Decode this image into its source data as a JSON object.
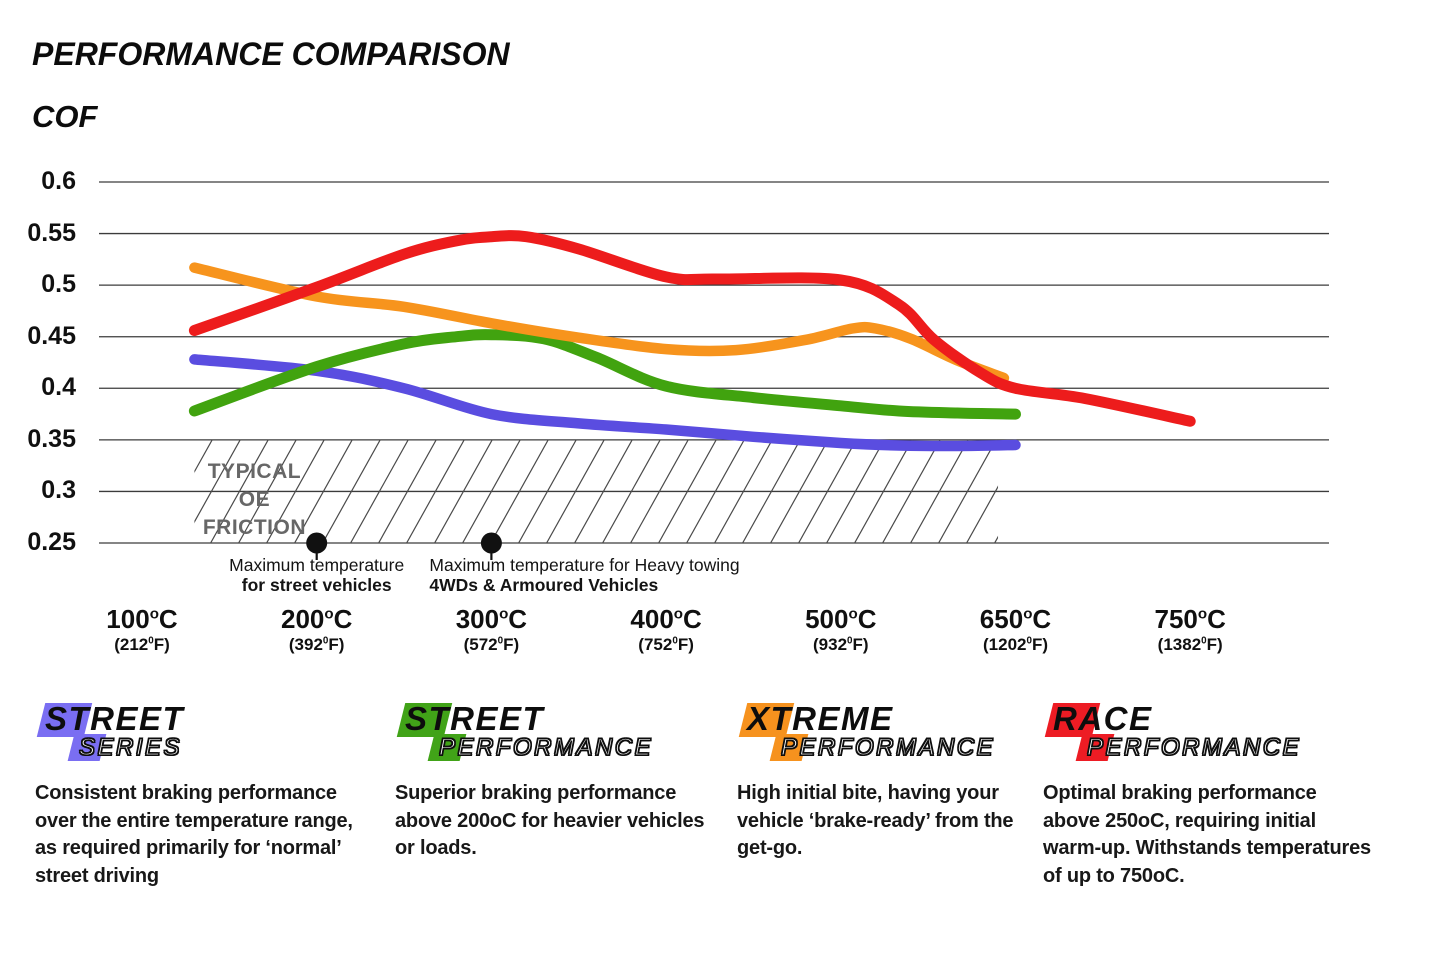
{
  "header": {
    "title": "PERFORMANCE COMPARISON",
    "cof_label": "COF"
  },
  "chart_data": {
    "type": "line",
    "title": "PERFORMANCE COMPARISON",
    "ylabel": "COF",
    "ylim": [
      0.25,
      0.6
    ],
    "grid": "horizontal-only",
    "y_ticks": [
      0.6,
      0.55,
      0.5,
      0.45,
      0.4,
      0.35,
      0.3,
      0.25
    ],
    "x_axis": {
      "unit_c_sup": "o",
      "unit_c": "C",
      "unit_f_sup": "0",
      "unit_f": "F",
      "categories": [
        {
          "temp": 100,
          "c": "100",
          "f": "212"
        },
        {
          "temp": 200,
          "c": "200",
          "f": "392"
        },
        {
          "temp": 300,
          "c": "300",
          "f": "572"
        },
        {
          "temp": 400,
          "c": "400",
          "f": "752"
        },
        {
          "temp": 500,
          "c": "500",
          "f": "932"
        },
        {
          "temp": 650,
          "c": "650",
          "f": "1202"
        },
        {
          "temp": 750,
          "c": "750",
          "f": "1382"
        }
      ]
    },
    "series": [
      {
        "name": "Street Series",
        "color": "#5a4de0",
        "width": 10.5,
        "points": [
          [
            130,
            0.428
          ],
          [
            200,
            0.417
          ],
          [
            250,
            0.4
          ],
          [
            300,
            0.375
          ],
          [
            350,
            0.366
          ],
          [
            400,
            0.36
          ],
          [
            450,
            0.353
          ],
          [
            500,
            0.347
          ],
          [
            550,
            0.3445
          ],
          [
            600,
            0.344
          ],
          [
            650,
            0.345
          ]
        ]
      },
      {
        "name": "Street Performance",
        "color": "#41a30f",
        "width": 11,
        "points": [
          [
            130,
            0.378
          ],
          [
            200,
            0.421
          ],
          [
            250,
            0.443
          ],
          [
            280,
            0.45
          ],
          [
            300,
            0.452
          ],
          [
            330,
            0.448
          ],
          [
            360,
            0.43
          ],
          [
            400,
            0.402
          ],
          [
            450,
            0.391
          ],
          [
            500,
            0.383
          ],
          [
            550,
            0.378
          ],
          [
            600,
            0.376
          ],
          [
            650,
            0.375
          ]
        ]
      },
      {
        "name": "Xtreme Performance",
        "color": "#f7941d",
        "width": 10.5,
        "points": [
          [
            130,
            0.517
          ],
          [
            200,
            0.489
          ],
          [
            250,
            0.479
          ],
          [
            300,
            0.463
          ],
          [
            350,
            0.449
          ],
          [
            400,
            0.438
          ],
          [
            440,
            0.437
          ],
          [
            480,
            0.447
          ],
          [
            510,
            0.458
          ],
          [
            530,
            0.458
          ],
          [
            560,
            0.448
          ],
          [
            600,
            0.427
          ],
          [
            640,
            0.41
          ]
        ]
      },
      {
        "name": "Race Performance",
        "color": "#ed1c1c",
        "width": 11,
        "points": [
          [
            130,
            0.456
          ],
          [
            200,
            0.498
          ],
          [
            250,
            0.53
          ],
          [
            280,
            0.543
          ],
          [
            300,
            0.547
          ],
          [
            320,
            0.547
          ],
          [
            350,
            0.535
          ],
          [
            400,
            0.508
          ],
          [
            430,
            0.506
          ],
          [
            500,
            0.505
          ],
          [
            550,
            0.481
          ],
          [
            580,
            0.447
          ],
          [
            620,
            0.415
          ],
          [
            650,
            0.4
          ],
          [
            690,
            0.39
          ],
          [
            750,
            0.368
          ]
        ]
      }
    ],
    "oe_zone": {
      "label_line1": "TYPICAL OE",
      "label_line2": "FRICTION",
      "y_top": 0.35,
      "y_bottom": 0.25,
      "x_start_temp": 130,
      "x_end_temp": 635
    },
    "annotations": [
      {
        "temp": 200,
        "cof": 0.25,
        "align": "center",
        "dx": 0,
        "line1": "Maximum temperature",
        "line2": "for street vehicles"
      },
      {
        "temp": 300,
        "cof": 0.25,
        "align": "left",
        "dx": -62,
        "line1": "Maximum temperature for Heavy towing",
        "line2": "4WDs & Armoured Vehicles"
      }
    ]
  },
  "legend": {
    "items": [
      {
        "word1": "STREET",
        "word2": "SERIES",
        "color": "#7a6ef2",
        "description": "Consistent braking performance over the entire temperature range, as required primarily for ‘normal’ street driving"
      },
      {
        "word1": "STREET",
        "word2": "PERFORMANCE",
        "color": "#41a318",
        "description": "Superior braking performance above 200oC for heavier vehicles or loads."
      },
      {
        "word1": "XTREME",
        "word2": "PERFORMANCE",
        "color": "#f6921e",
        "description": "High initial bite, having your vehicle ‘brake-ready’ from the get-go."
      },
      {
        "word1": "RACE",
        "word2": "PERFORMANCE",
        "color": "#ed1c24",
        "description": "Optimal braking performance above 250oC, requiring initial warm-up. Withstands temperatures of up to 750oC."
      }
    ]
  }
}
